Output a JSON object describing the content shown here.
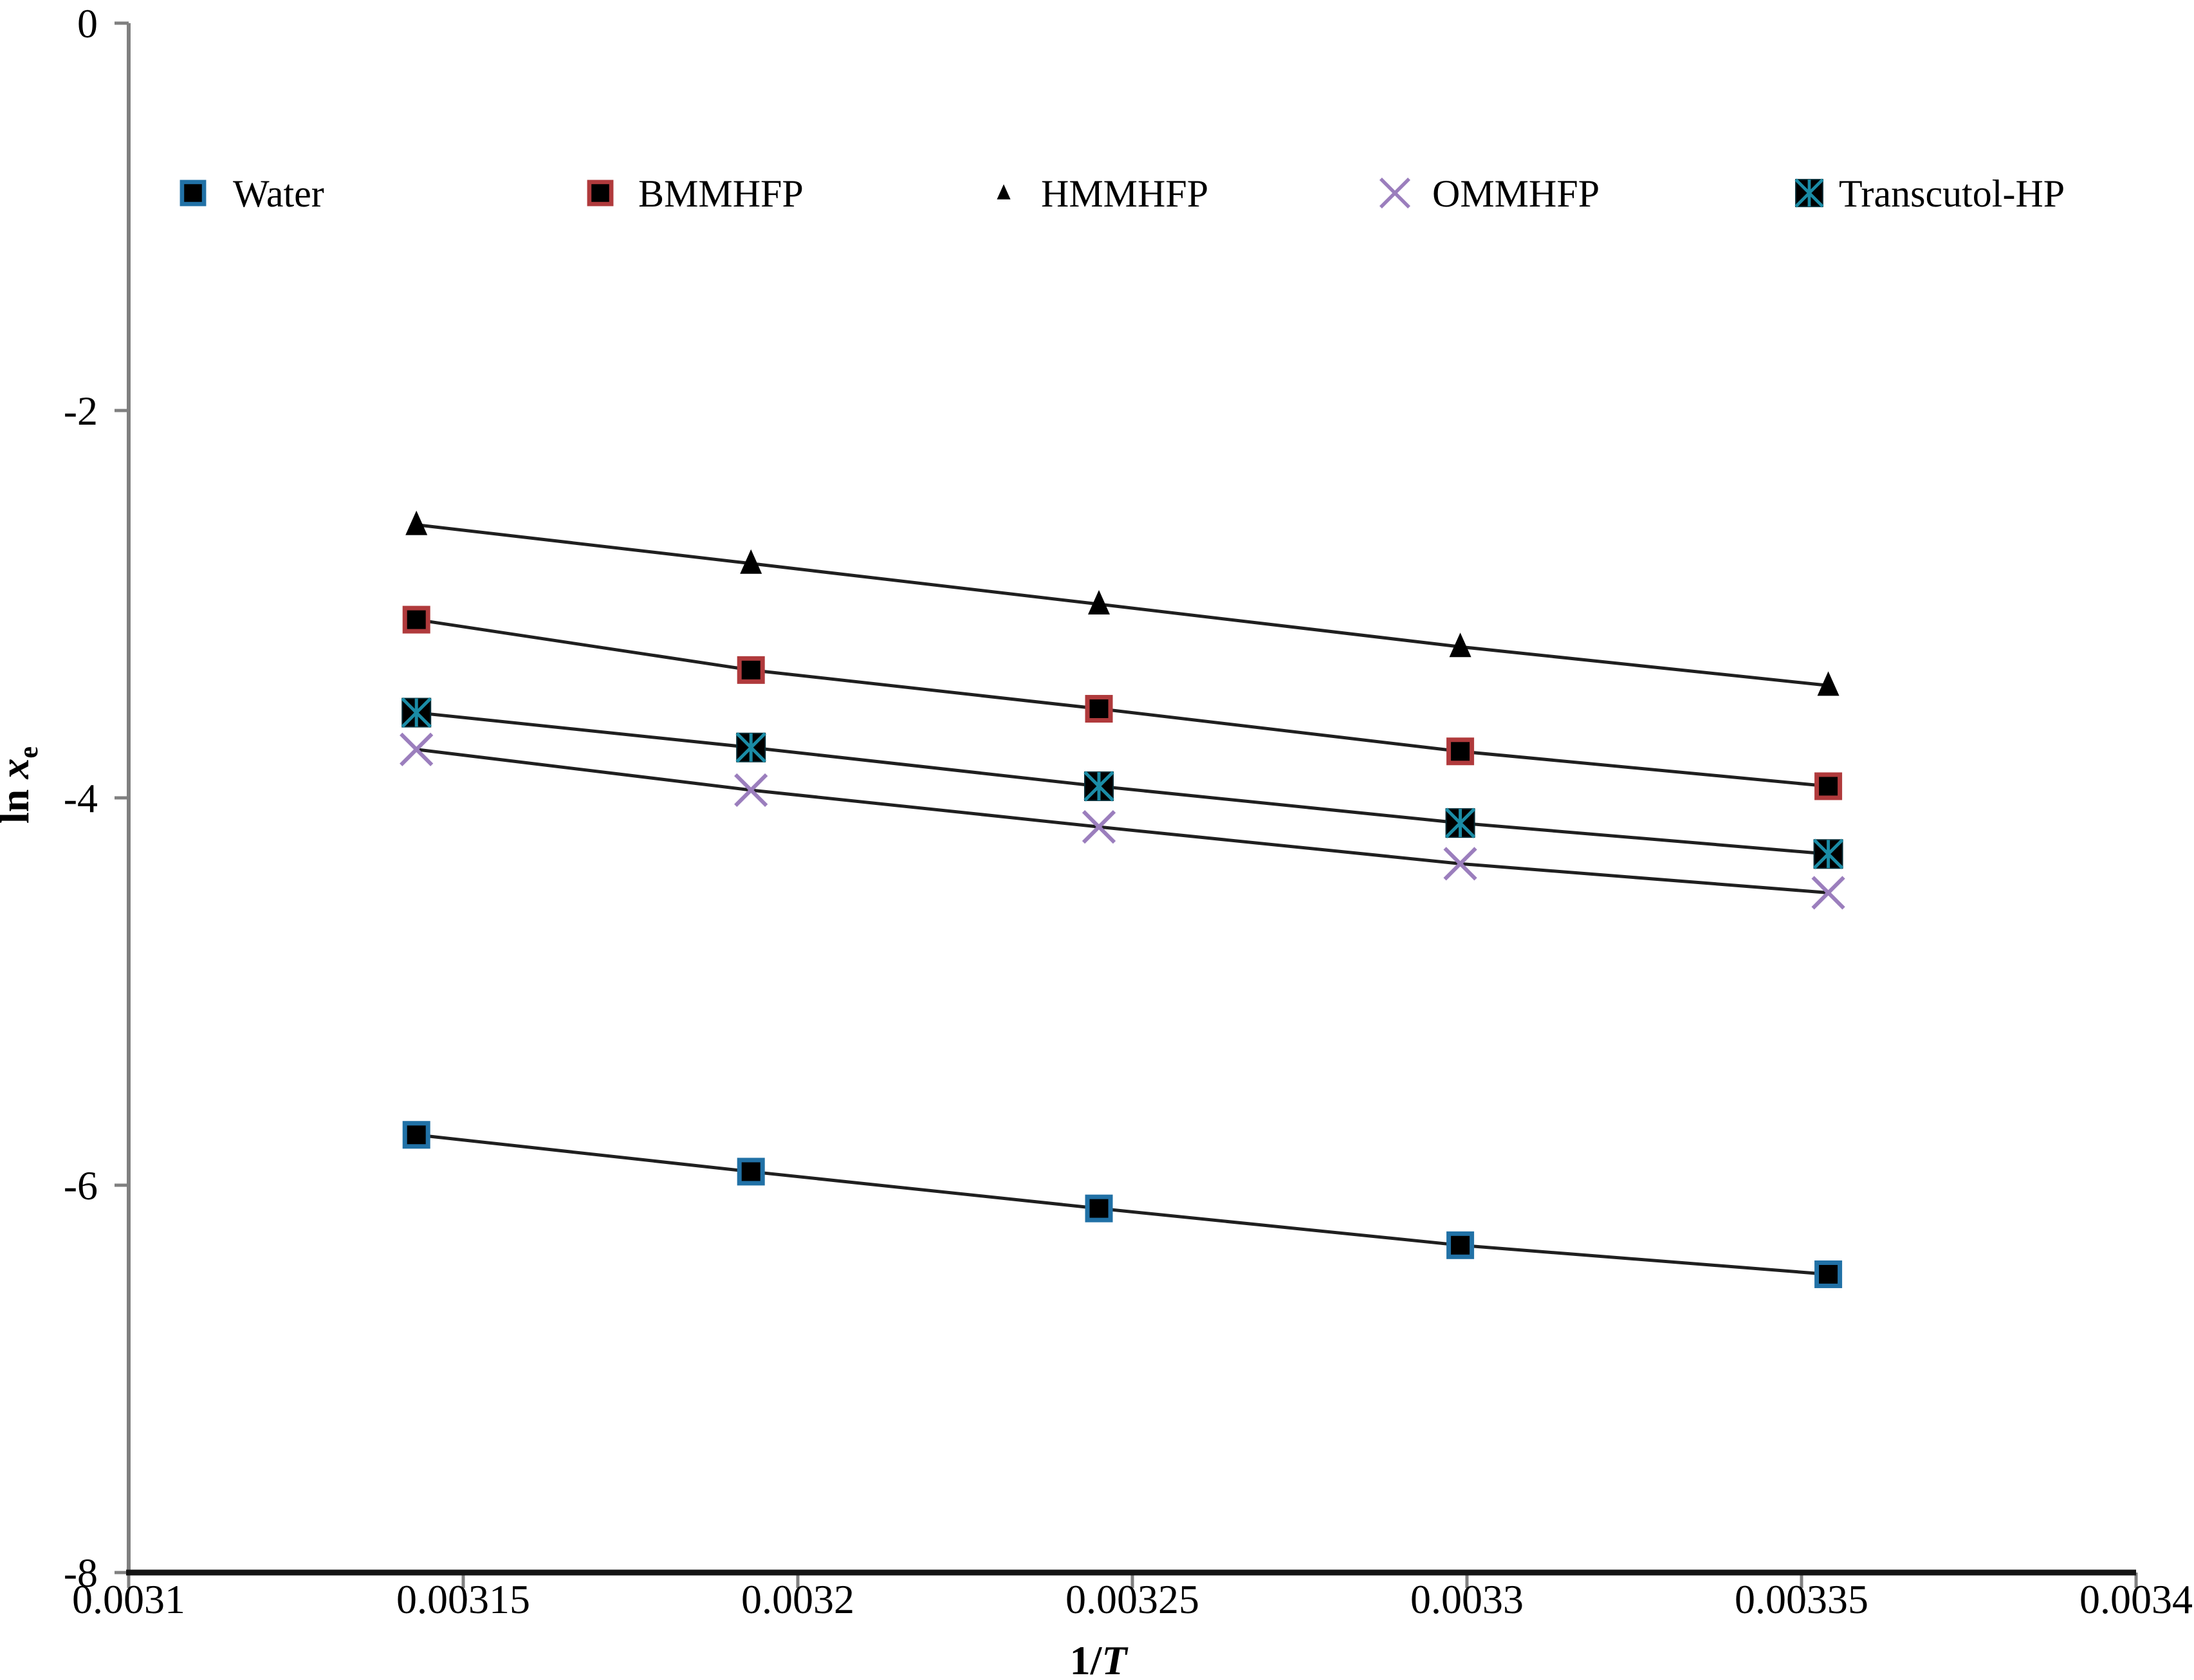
{
  "chart_data": {
    "type": "line",
    "title": "",
    "xlabel_parts": {
      "prefix": "1/",
      "italic": "T"
    },
    "ylabel_parts": {
      "prefix": "ln ",
      "italic": "x",
      "sub": "e"
    },
    "xlim": [
      0.0031,
      0.0034
    ],
    "ylim": [
      -8,
      0
    ],
    "grid": false,
    "x_ticks": [
      {
        "value": 0.0031,
        "label": "0.0031"
      },
      {
        "value": 0.00315,
        "label": "0.00315"
      },
      {
        "value": 0.0032,
        "label": "0.0032"
      },
      {
        "value": 0.00325,
        "label": "0.00325"
      },
      {
        "value": 0.0033,
        "label": "0.0033"
      },
      {
        "value": 0.00335,
        "label": "0.00335"
      },
      {
        "value": 0.0034,
        "label": "0.0034"
      }
    ],
    "y_ticks": [
      {
        "value": 0,
        "label": "0"
      },
      {
        "value": -2,
        "label": "-2"
      },
      {
        "value": -4,
        "label": "-4"
      },
      {
        "value": -6,
        "label": "-6"
      },
      {
        "value": -8,
        "label": "-8"
      }
    ],
    "x": [
      0.003143,
      0.003193,
      0.003245,
      0.003299,
      0.003354
    ],
    "series": [
      {
        "name": "Water",
        "marker": "square",
        "fill": "#000000",
        "stroke": "#2171A6",
        "values": [
          -5.74,
          -5.93,
          -6.12,
          -6.31,
          -6.46
        ]
      },
      {
        "name": "BMMHFP",
        "marker": "square",
        "fill": "#000000",
        "stroke": "#B03A3C",
        "values": [
          -3.08,
          -3.34,
          -3.54,
          -3.76,
          -3.94
        ]
      },
      {
        "name": "HMMHFP",
        "marker": "triangle",
        "fill": "#000000",
        "stroke": "#000000",
        "values": [
          -2.59,
          -2.79,
          -3.0,
          -3.22,
          -3.42
        ]
      },
      {
        "name": "OMMHFP",
        "marker": "x",
        "fill": "none",
        "stroke": "#9B7EBD",
        "values": [
          -3.75,
          -3.96,
          -4.15,
          -4.34,
          -4.49
        ]
      },
      {
        "name": "Transcutol-HP",
        "marker": "boxed-star",
        "fill": "#000000",
        "stroke": "#1B8CA6",
        "values": [
          -3.56,
          -3.74,
          -3.94,
          -4.13,
          -4.29
        ]
      }
    ],
    "legend_position": "top-inside",
    "legend": {
      "items": [
        {
          "series_index": 0,
          "label": "Water",
          "marker_x": 300,
          "label_x": 362
        },
        {
          "series_index": 1,
          "label": "BMMHFP",
          "marker_x": 933,
          "label_x": 992
        },
        {
          "series_index": 2,
          "label": "HMMHFP",
          "marker_x": 1560,
          "label_x": 1618
        },
        {
          "series_index": 3,
          "label": "OMMHFP",
          "marker_x": 2168,
          "label_x": 2226
        },
        {
          "series_index": 4,
          "label": "Transcutol-HP",
          "marker_x": 2812,
          "label_x": 2858
        }
      ]
    },
    "colors": {
      "background": "#FFFFFF",
      "y_axis": "#808080",
      "x_axis": "#141414",
      "tick": "#808080",
      "trend_line": "#1F1F1F",
      "text": "#000000"
    }
  }
}
